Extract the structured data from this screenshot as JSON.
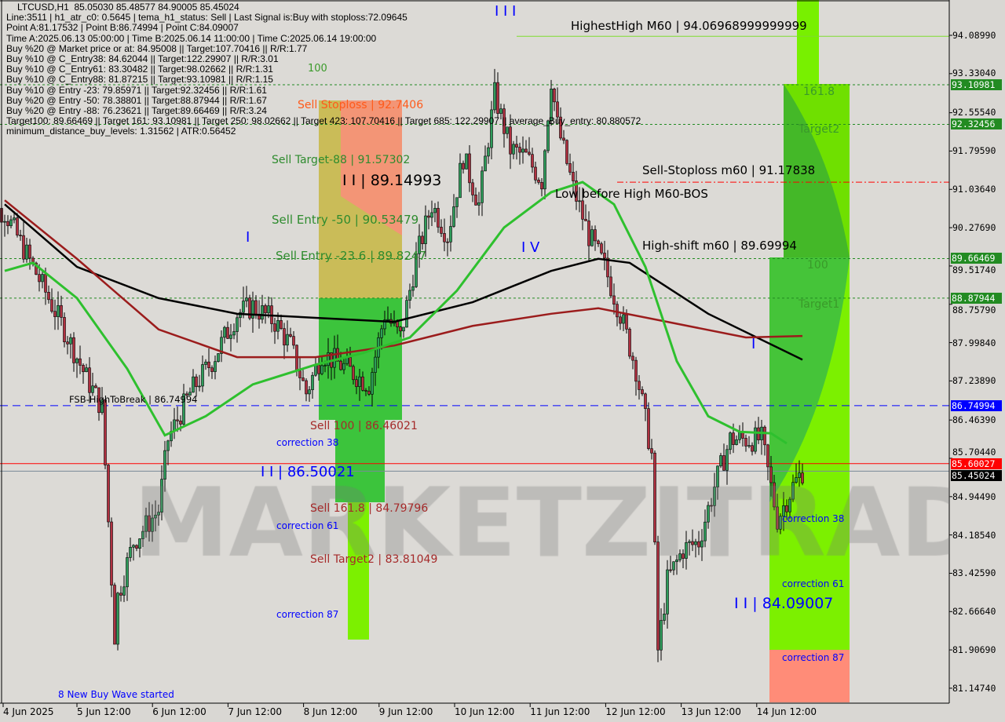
{
  "window": {
    "symbol_line": "LTCUSD,H1  85.05030 85.48577 84.90005 85.45024"
  },
  "info_lines": [
    "Line:3511 | h1_atr_c0: 0.5645 | tema_h1_status: Sell | Last Signal is:Buy with stoploss:72.09645",
    "Point A:81.17532 | Point B:86.74994 | Point C:84.09007",
    "Time A:2025.06.13 05:00:00 | Time B:2025.06.14 11:00:00 | Time C:2025.06.14 19:00:00",
    "Buy %20 @ Market price or at: 84.95008 || Target:107.70416 || R/R:1.77",
    "Buy %10 @ C_Entry38: 84.62044 || Target:122.29907 || R/R:3.01",
    "Buy %10 @ C_Entry61: 83.30482 || Target:98.02662 || R/R:1.31",
    "Buy %10 @ C_Entry88: 81.87215 || Target:93.10981 || R/R:1.15",
    "Buy %10 @ Entry -23: 79.85971 || Target:92.32456 || R/R:1.61",
    "Buy %20 @ Entry -50: 78.38801 || Target:88.87944 || R/R:1.67",
    "Buy %20 @ Entry -88: 76.23621 || Target:89.66469 || R/R:3.24",
    "Target100: 89.66469 || Target 161: 93.10981 || Target 250: 98.02662 || Target 423: 107.70416 || Target 685: 122.29907 || average_Buy_entry: 80.880572",
    "minimum_distance_buy_levels: 1.31562 | ATR:0.56452"
  ],
  "watermark": "MARKETZITRADE",
  "labels": {
    "l100": "100",
    "sell_stoploss": "Sell Stoploss | 92.7406",
    "sell_target88": "Sell Target-88 | 91.57302",
    "wave_89": "I I | 89.14993",
    "sell_entry_50": "Sell Entry -50 | 90.53479",
    "sell_entry_236": "Sell Entry -23.6 | 89.8247",
    "sell_100": "Sell 100 | 86.46021",
    "sell_1618": "Sell 161.8 | 84.79796",
    "sell_target2": "Sell Target2 | 83.81049",
    "wave_86": "I I | 86.50021",
    "fsb": "FSB-HighToBreak | 86.74994",
    "corr38_l": "correction 38",
    "corr61_l": "correction 61",
    "corr87_l": "correction 87",
    "new_buy_wave": "8 New Buy Wave started",
    "wave_iii": "I I I",
    "wave_i": "I",
    "wave_iv": "I V",
    "wave_i2": "I",
    "highest_high": "HighestHigh   M60 | 94.06968999999999",
    "sell_stoploss_m60": "Sell-Stoploss m60 | 91.17838",
    "low_before_high": "Low before High   M60-BOS",
    "high_shift": "High-shift m60 | 89.69994",
    "r1618": "161.8",
    "target2": "Target2",
    "r100": "100",
    "target1": "Target1",
    "corr38_r": "correction 38",
    "corr61_r": "correction 61",
    "corr87_r": "correction 87",
    "wave_84": "I I | 84.09007"
  },
  "price_axis": [
    "94.08990",
    "93.33040",
    "92.55540",
    "91.79590",
    "91.03640",
    "90.27690",
    "89.51740",
    "88.75790",
    "87.99840",
    "87.23890",
    "86.46390",
    "85.70440",
    "84.94490",
    "84.18540",
    "83.42590",
    "82.66640",
    "81.90690",
    "81.14740"
  ],
  "price_tags": [
    {
      "value": "93.10981",
      "color": "#228b22"
    },
    {
      "value": "92.32456",
      "color": "#228b22"
    },
    {
      "value": "89.66469",
      "color": "#228b22"
    },
    {
      "value": "88.87944",
      "color": "#228b22"
    },
    {
      "value": "86.74994",
      "color": "#0000ff"
    },
    {
      "value": "85.60027",
      "color": "#ff0000"
    },
    {
      "value": "85.45024",
      "color": "#000000"
    }
  ],
  "time_axis": [
    "4 Jun 2025",
    "5 Jun 12:00",
    "6 Jun 12:00",
    "7 Jun 12:00",
    "8 Jun 12:00",
    "9 Jun 12:00",
    "10 Jun 12:00",
    "11 Jun 12:00",
    "12 Jun 12:00",
    "13 Jun 12:00",
    "14 Jun 12:00"
  ],
  "chart_data": {
    "type": "candlestick",
    "symbol": "LTCUSD",
    "timeframe": "H1",
    "ylim": [
      81.1474,
      94.0899
    ],
    "xlim": [
      "2025.06.04 00:00",
      "2025.06.15 03:00"
    ],
    "grid": false,
    "close_path": [
      [
        "2025.06.04 13:00",
        90.59
      ],
      [
        "2025.06.04 22:00",
        89.5
      ],
      [
        "2025.06.05 08:00",
        88.25
      ],
      [
        "2025.06.05 15:00",
        87.3
      ],
      [
        "2025.06.05 20:00",
        86.7
      ],
      [
        "2025.06.06 00:00",
        82.2
      ],
      [
        "2025.06.06 01:00",
        82.97
      ],
      [
        "2025.06.06 06:00",
        84.05
      ],
      [
        "2025.06.06 14:00",
        84.68
      ],
      [
        "2025.06.06 17:00",
        86.08
      ],
      [
        "2025.06.07 00:00",
        87.0
      ],
      [
        "2025.06.07 07:00",
        87.63
      ],
      [
        "2025.06.07 15:00",
        88.57
      ],
      [
        "2025.06.07 20:00",
        88.72
      ],
      [
        "2025.06.08 03:00",
        88.41
      ],
      [
        "2025.06.08 08:00",
        87.94
      ],
      [
        "2025.06.08 13:00",
        87.0
      ],
      [
        "2025.06.08 18:00",
        87.79
      ],
      [
        "2025.06.09 02:00",
        87.48
      ],
      [
        "2025.06.09 09:00",
        87.17
      ],
      [
        "2025.06.09 14:00",
        88.57
      ],
      [
        "2025.06.09 19:00",
        88.1
      ],
      [
        "2025.06.10 00:00",
        89.66
      ],
      [
        "2025.06.10 05:00",
        90.74
      ],
      [
        "2025.06.10 10:00",
        90.12
      ],
      [
        "2025.06.10 15:00",
        91.68
      ],
      [
        "2025.06.10 20:00",
        90.74
      ],
      [
        "2025.06.11 01:00",
        92.92
      ],
      [
        "2025.06.11 06:00",
        91.83
      ],
      [
        "2025.06.11 11:00",
        91.68
      ],
      [
        "2025.06.11 16:00",
        91.21
      ],
      [
        "2025.06.11 19:00",
        93.23
      ],
      [
        "2025.06.11 21:00",
        92.3
      ],
      [
        "2025.06.12 02:00",
        91.06
      ],
      [
        "2025.06.12 07:00",
        90.12
      ],
      [
        "2025.06.12 12:00",
        89.5
      ],
      [
        "2025.06.12 17:00",
        88.57
      ],
      [
        "2025.06.12 22:00",
        87.48
      ],
      [
        "2025.06.13 03:00",
        85.77
      ],
      [
        "2025.06.13 05:00",
        81.9
      ],
      [
        "2025.06.13 08:00",
        83.28
      ],
      [
        "2025.06.13 13:00",
        83.9
      ],
      [
        "2025.06.13 18:00",
        84.05
      ],
      [
        "2025.06.13 23:00",
        85.15
      ],
      [
        "2025.06.14 04:00",
        86.08
      ],
      [
        "2025.06.14 09:00",
        86.08
      ],
      [
        "2025.06.14 14:00",
        86.08
      ],
      [
        "2025.06.14 19:00",
        84.5
      ],
      [
        "2025.06.15 00:00",
        85.15
      ],
      [
        "2025.06.15 03:00",
        85.45
      ]
    ],
    "ma_lines": [
      {
        "color": "#000000",
        "points": [
          [
            "2025.06.04 13:00",
            90.74
          ],
          [
            "2025.06.05 12:00",
            89.5
          ],
          [
            "2025.06.06 14:00",
            88.88
          ],
          [
            "2025.06.07 15:00",
            88.57
          ],
          [
            "2025.06.08 16:00",
            88.49
          ],
          [
            "2025.06.09 17:00",
            88.41
          ],
          [
            "2025.06.10 18:00",
            88.8
          ],
          [
            "2025.06.11 19:00",
            89.42
          ],
          [
            "2025.06.12 10:00",
            89.66
          ],
          [
            "2025.06.12 20:00",
            89.58
          ],
          [
            "2025.06.13 21:00",
            88.57
          ],
          [
            "2025.06.15 03:00",
            87.66
          ]
        ]
      },
      {
        "color": "#9b1c1c",
        "points": [
          [
            "2025.06.04 13:00",
            90.82
          ],
          [
            "2025.06.05 12:00",
            89.66
          ],
          [
            "2025.06.06 14:00",
            88.26
          ],
          [
            "2025.06.07 15:00",
            87.71
          ],
          [
            "2025.06.08 16:00",
            87.71
          ],
          [
            "2025.06.09 17:00",
            87.94
          ],
          [
            "2025.06.10 18:00",
            88.33
          ],
          [
            "2025.06.11 19:00",
            88.57
          ],
          [
            "2025.06.12 10:00",
            88.68
          ],
          [
            "2025.06.13 08:00",
            88.41
          ],
          [
            "2025.06.14 09:00",
            88.1
          ],
          [
            "2025.06.15 03:00",
            88.13
          ]
        ]
      },
      {
        "color": "#2ec02e",
        "points": [
          [
            "2025.06.04 13:00",
            89.42
          ],
          [
            "2025.06.04 22:00",
            89.58
          ],
          [
            "2025.06.05 12:00",
            88.88
          ],
          [
            "2025.06.06 04:00",
            87.48
          ],
          [
            "2025.06.06 16:00",
            86.16
          ],
          [
            "2025.06.07 05:00",
            86.54
          ],
          [
            "2025.06.07 20:00",
            87.17
          ],
          [
            "2025.06.08 16:00",
            87.56
          ],
          [
            "2025.06.09 07:00",
            87.79
          ],
          [
            "2025.06.09 22:00",
            88.1
          ],
          [
            "2025.06.10 13:00",
            89.03
          ],
          [
            "2025.06.11 04:00",
            90.28
          ],
          [
            "2025.06.11 19:00",
            90.98
          ],
          [
            "2025.06.12 05:00",
            91.18
          ],
          [
            "2025.06.12 15:00",
            90.74
          ],
          [
            "2025.06.13 01:00",
            89.5
          ],
          [
            "2025.06.13 11:00",
            87.63
          ],
          [
            "2025.06.13 21:00",
            86.54
          ],
          [
            "2025.06.14 07:00",
            86.23
          ],
          [
            "2025.06.14 17:00",
            86.2
          ],
          [
            "2025.06.14 22:00",
            86.0
          ]
        ]
      }
    ],
    "levels": [
      {
        "price": 93.10981,
        "color": "#228b22",
        "style": "dotted"
      },
      {
        "price": 92.32456,
        "color": "#228b22",
        "style": "dotted"
      },
      {
        "price": 89.66469,
        "color": "#228b22",
        "style": "dotted"
      },
      {
        "price": 88.87944,
        "color": "#228b22",
        "style": "dotted"
      },
      {
        "price": 86.74994,
        "color": "#0000ff",
        "style": "dashed"
      },
      {
        "price": 85.60027,
        "color": "#ff0000",
        "style": "solid"
      },
      {
        "price": 85.45024,
        "color": "#7a8a99",
        "style": "solid"
      },
      {
        "price": 91.17838,
        "color": "#ff0000",
        "style": "dashdot",
        "from": "2025.06.12 16:00"
      },
      {
        "price": 94.06969,
        "color": "#7fdc2f",
        "style": "solid",
        "from": "2025.06.11 08:00"
      }
    ],
    "up_color": "#2e9c5a",
    "down_color": "#b03040"
  }
}
